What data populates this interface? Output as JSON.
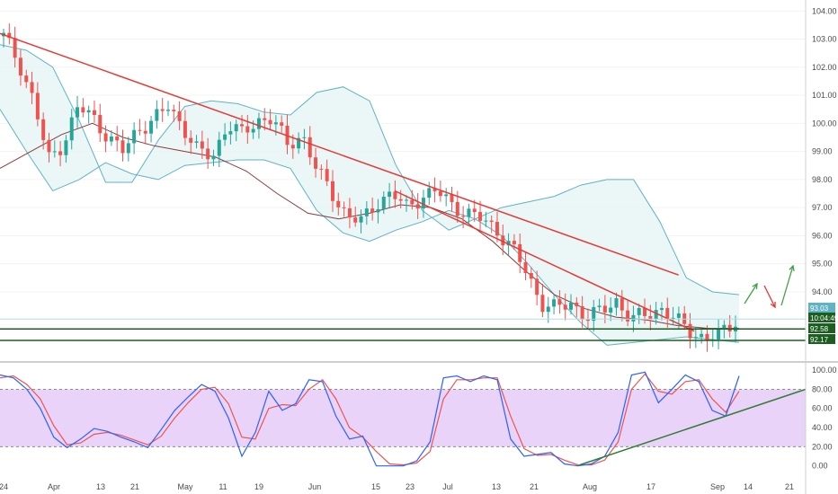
{
  "chart_data": [
    {
      "type": "candlestick",
      "panel": "price",
      "x_tick_labels": [
        "24",
        "Apr",
        "13",
        "21",
        "May",
        "11",
        "19",
        "Jun",
        "15",
        "23",
        "Jul",
        "13",
        "21",
        "Aug",
        "17",
        "Sep",
        "14",
        "21"
      ],
      "y_tick_labels": [
        "104.00",
        "103.00",
        "102.00",
        "101.00",
        "100.00",
        "99.00",
        "98.00",
        "97.00",
        "96.00",
        "95.00",
        "94.00"
      ],
      "ylim": [
        91.6,
        104.2
      ],
      "colors": {
        "up": "#26a69a",
        "down": "#ef5350",
        "band": "#5fb3c4",
        "band_fill": "#e6f4f4",
        "basis": "#8b3a3a",
        "trendline": "#e53935",
        "support": "#1b5e20",
        "projection_up": "#43a047",
        "projection_down": "#e53935"
      },
      "close_path": [
        103.1,
        102.2,
        100.8,
        98.7,
        99.3,
        100.6,
        100.2,
        99.5,
        99.0,
        99.8,
        100.1,
        100.6,
        99.9,
        99.0,
        98.8,
        100.0,
        99.6,
        100.1,
        100.2,
        99.2,
        99.6,
        98.3,
        97.5,
        96.7,
        96.5,
        97.2,
        97.5,
        97.0,
        97.4,
        97.6,
        97.1,
        96.8,
        96.6,
        96.2,
        95.6,
        94.7,
        93.6,
        93.4,
        93.6,
        93.1,
        93.3,
        93.7,
        93.0,
        93.2,
        93.4,
        93.0,
        92.6,
        92.3,
        92.5,
        93.0
      ],
      "upper_band_path": [
        102.8,
        102.6,
        102.0,
        100.1,
        97.9,
        97.9,
        99.4,
        100.6,
        100.8,
        100.7,
        100.4,
        100.3,
        101.1,
        101.3,
        100.8,
        98.5,
        96.9,
        96.2,
        96.6,
        97.0,
        97.2,
        97.4,
        97.8,
        98.0,
        98.0,
        96.5,
        94.5,
        94.0,
        93.9
      ],
      "lower_band_path": [
        100.5,
        99.0,
        97.6,
        98.0,
        98.6,
        98.2,
        98.0,
        98.5,
        98.6,
        98.7,
        98.7,
        98.4,
        96.9,
        96.1,
        95.8,
        96.2,
        96.5,
        96.9,
        96.6,
        96.0,
        95.0,
        93.9,
        92.9,
        92.1,
        92.2,
        92.3,
        92.4,
        92.3,
        92.2
      ],
      "basis_path": [
        98.4,
        99.0,
        99.6,
        100.0,
        99.5,
        99.2,
        99.0,
        98.8,
        98.3,
        97.5,
        96.8,
        96.6,
        96.8,
        97.1,
        97.0,
        96.6,
        95.8,
        94.8,
        93.9,
        93.4,
        93.1,
        93.0,
        92.8,
        92.7,
        92.7
      ],
      "trendlines": [
        {
          "from": [
            0,
            103.2
          ],
          "to": [
            43,
            94.6
          ]
        },
        {
          "from": [
            25,
            97.6
          ],
          "to": [
            44,
            92.6
          ]
        }
      ],
      "support_levels": [
        92.58,
        92.17
      ],
      "price_tags": [
        {
          "label": "93.03",
          "value": 93.03,
          "color": "#5fb3c4"
        },
        {
          "label": "10:04:49",
          "value": 92.6,
          "color": "#1b5e20"
        },
        {
          "label": "92.58",
          "value": 92.3,
          "color": "#1b5e20"
        },
        {
          "label": "92.17",
          "value": 92.0,
          "color": "#1b5e20"
        }
      ]
    },
    {
      "type": "line",
      "panel": "oscillator",
      "y_tick_labels": [
        "100.00",
        "80.00",
        "60.00",
        "40.00",
        "20.00",
        "0.00"
      ],
      "ylim": [
        -5,
        102
      ],
      "bands": {
        "upper": 80,
        "lower": 20
      },
      "colors": {
        "k": "#2962ff",
        "d": "#ef5350",
        "band_fill": "#e1c4f7",
        "trendline": "#2e7d32"
      },
      "series": [
        {
          "values": [
            95,
            92,
            80,
            60,
            30,
            19,
            28,
            39,
            36,
            30,
            25,
            19,
            38,
            58,
            72,
            85,
            78,
            50,
            10,
            35,
            78,
            58,
            65,
            90,
            88,
            52,
            28,
            31,
            0,
            0,
            0,
            5,
            25,
            92,
            94,
            88,
            94,
            90,
            28,
            10,
            12,
            14,
            2,
            0,
            2,
            10,
            35,
            95,
            98,
            66,
            80,
            95,
            88,
            58,
            52,
            94
          ]
        },
        {
          "values": [
            92,
            94,
            85,
            70,
            42,
            22,
            24,
            33,
            35,
            32,
            27,
            22,
            31,
            50,
            66,
            80,
            82,
            65,
            30,
            28,
            60,
            64,
            63,
            80,
            90,
            70,
            40,
            30,
            15,
            2,
            1,
            3,
            15,
            70,
            90,
            90,
            92,
            92,
            52,
            18,
            11,
            12,
            6,
            1,
            1,
            6,
            25,
            80,
            96,
            78,
            75,
            88,
            90,
            70,
            56,
            78
          ]
        }
      ],
      "trendline": {
        "from": [
          0.78,
          1
        ],
        "to": [
          1.0,
          80
        ]
      }
    }
  ]
}
